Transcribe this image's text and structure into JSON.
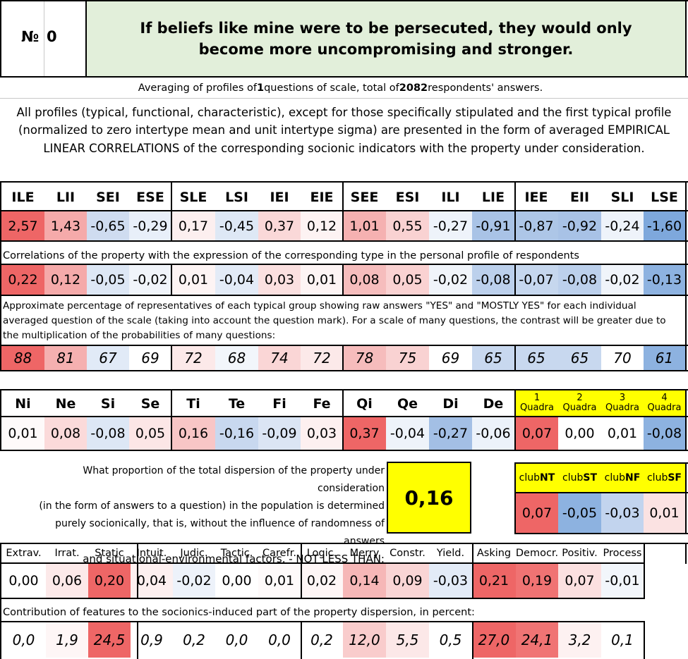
{
  "header": {
    "number_label": "№",
    "number_value": "0",
    "question": "If beliefs like mine were to be persecuted, they would only become more uncompromising and stronger."
  },
  "summary": {
    "prefix": "Averaging of profiles of ",
    "questions": "1",
    "middle": " questions of scale, total of ",
    "respondents": "2082",
    "suffix": " respondents' answers."
  },
  "description": "All profiles (typical, functional, characteristic), except for those specifically stipulated and the first typical profile (normalized to zero intertype mean and unit intertype sigma) are presented in the form of averaged EMPIRICAL LINEAR CORRELATIONS of the corresponding socionic indicators with the property under consideration.",
  "types": {
    "headers": [
      "ILE",
      "LII",
      "SEI",
      "ESE",
      "SLE",
      "LSI",
      "IEI",
      "EIE",
      "SEE",
      "ESI",
      "ILI",
      "LIE",
      "IEE",
      "EII",
      "SLI",
      "LSE"
    ],
    "typical": [
      "2,57",
      "1,43",
      "-0,65",
      "-0,29",
      "0,17",
      "-0,45",
      "0,37",
      "0,12",
      "1,01",
      "0,55",
      "-0,27",
      "-0,91",
      "-0,87",
      "-0,92",
      "-0,24",
      "-1,60"
    ],
    "typical_colors": [
      "#ee6666",
      "#f5aaaa",
      "#cfdcf0",
      "#e8eff9",
      "#fcefef",
      "#dee8f5",
      "#fad8d8",
      "#fdf3f3",
      "#f5b1b1",
      "#f9d2d2",
      "#eef3fa",
      "#a9c3e6",
      "#adc6e7",
      "#a8c2e6",
      "#eef3fa",
      "#7ea8dc"
    ],
    "correlations_caption": "Correlations of the property with the expression of the corresponding type in the personal profile of respondents",
    "correlations": [
      "0,22",
      "0,12",
      "-0,05",
      "-0,02",
      "0,01",
      "-0,04",
      "0,03",
      "0,01",
      "0,08",
      "0,05",
      "-0,02",
      "-0,08",
      "-0,07",
      "-0,08",
      "-0,02",
      "-0,13"
    ],
    "correlations_colors": [
      "#ee6666",
      "#f5aaaa",
      "#dde7f5",
      "#f0f4fa",
      "#fdf4f4",
      "#e3ebf7",
      "#fbe0e0",
      "#fdf4f4",
      "#f6bdbd",
      "#fad2d2",
      "#f0f4fa",
      "#bcd0ec",
      "#c6d7ee",
      "#bcd0ec",
      "#f0f4fa",
      "#8db2e0"
    ],
    "percentage_caption": "Approximate percentage of representatives of each typical group showing raw answers \"YES\" and \"MOSTLY YES\" for each individual averaged question of the scale (taking into account the question mark). For a scale of many questions, the contrast will be greater due to the multiplication of the probabilities of many questions:",
    "percentages": [
      "88",
      "81",
      "67",
      "69",
      "72",
      "68",
      "74",
      "72",
      "78",
      "75",
      "69",
      "65",
      "65",
      "65",
      "70",
      "61"
    ],
    "percentages_colors": [
      "#ee6666",
      "#f5b0b0",
      "#e1eaf7",
      "#ffffff",
      "#fce9e9",
      "#f2f6fb",
      "#fad6d6",
      "#fce9e9",
      "#f6bcbc",
      "#f9d2d2",
      "#ffffff",
      "#c8d8ef",
      "#c8d8ef",
      "#c8d8ef",
      "#ffffff",
      "#8db2e0"
    ]
  },
  "functions": {
    "headers": [
      "Ni",
      "Ne",
      "Si",
      "Se",
      "Ti",
      "Te",
      "Fi",
      "Fe",
      "Qi",
      "Qe",
      "Di",
      "De"
    ],
    "values": [
      "0,01",
      "0,08",
      "-0,08",
      "0,05",
      "0,16",
      "-0,16",
      "-0,09",
      "0,03",
      "0,37",
      "-0,04",
      "-0,27",
      "-0,06"
    ],
    "colors": [
      "#fefafa",
      "#fbdada",
      "#dde7f5",
      "#fce6e6",
      "#f8c6c6",
      "#c8d8ef",
      "#dbe5f4",
      "#fdf0f0",
      "#ee6666",
      "#eef3fa",
      "#a3bfe5",
      "#ecf2fa"
    ],
    "quadra_headers": [
      [
        "1",
        "Quadra"
      ],
      [
        "2",
        "Quadra"
      ],
      [
        "3",
        "Quadra"
      ],
      [
        "4",
        "Quadra"
      ]
    ],
    "quadra_values": [
      "0,07",
      "0,00",
      "0,01",
      "-0,08"
    ],
    "quadra_colors": [
      "#ee6666",
      "#ffffff",
      "#ffffff",
      "#8db2e0"
    ],
    "quadra_header_color": "#ffff00"
  },
  "dispersion": {
    "text": [
      "What proportion of the total dispersion of the property under consideration",
      "(in the form of answers to a question) in the population is determined",
      "purely socionically, that is, without the influence of randomness of answers",
      "and situational-environmental factors. - NOT LESS THAN:"
    ],
    "value": "0,16",
    "value_color": "#ffff00"
  },
  "clubs": {
    "headers": [
      [
        "club",
        "NT"
      ],
      [
        "club",
        "ST"
      ],
      [
        "club",
        "NF"
      ],
      [
        "club",
        "SF"
      ]
    ],
    "values": [
      "0,07",
      "-0,05",
      "-0,03",
      "0,01"
    ],
    "colors": [
      "#ee6666",
      "#8db2e0",
      "#c2d4ee",
      "#fbe2e2"
    ]
  },
  "features": {
    "headers": [
      "Extrav.",
      "Irrat.",
      "Static",
      "Intuit.",
      "Judic.",
      "Tactic.",
      "Carefr.",
      "Logic.",
      "Merry",
      "Constr.",
      "Yield.",
      "Asking",
      "Democr.",
      "Positiv.",
      "Process"
    ],
    "values": [
      "0,00",
      "0,06",
      "0,20",
      "0,04",
      "-0,02",
      "0,00",
      "0,01",
      "0,02",
      "0,14",
      "0,09",
      "-0,03",
      "0,21",
      "0,19",
      "0,07",
      "-0,01"
    ],
    "colors": [
      "#ffffff",
      "#fce9e9",
      "#ee6666",
      "#fdf0f0",
      "#edf2fa",
      "#ffffff",
      "#fefafa",
      "#fef6f6",
      "#f6b7b7",
      "#f9d5d5",
      "#e3ebf7",
      "#ee6666",
      "#f07373",
      "#fbe0e0",
      "#f2f6fb"
    ],
    "contribution_caption": "Contribution of features to the sociоnics-induced part of the property dispersion, in percent:",
    "contributions": [
      "0,0",
      "1,9",
      "24,5",
      "0,9",
      "0,2",
      "0,0",
      "0,0",
      "0,2",
      "12,0",
      "5,5",
      "0,5",
      "27,0",
      "24,1",
      "3,2",
      "0,1"
    ],
    "contribution_colors": [
      "#ffffff",
      "#fef6f6",
      "#ee6666",
      "#ffffff",
      "#ffffff",
      "#ffffff",
      "#ffffff",
      "#ffffff",
      "#f9cccc",
      "#fce8e8",
      "#ffffff",
      "#ee6666",
      "#f07474",
      "#fdf1f1",
      "#ffffff"
    ]
  }
}
